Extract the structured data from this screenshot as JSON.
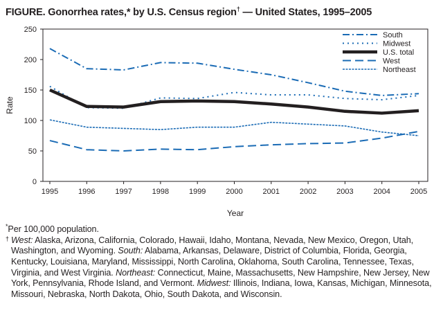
{
  "title": {
    "text": "FIGURE. Gonorrhea rates,* by U.S. Census region",
    "dagger": "†",
    "rest": " — United States, 1995–2005"
  },
  "chart_data": {
    "type": "line",
    "title": "Gonorrhea rates, by U.S. Census region — United States, 1995–2005",
    "xlabel": "Year",
    "ylabel": "Rate",
    "x": [
      1995,
      1996,
      1997,
      1998,
      1999,
      2000,
      2001,
      2002,
      2003,
      2004,
      2005
    ],
    "ylim": [
      0,
      250
    ],
    "yticks": [
      0,
      50,
      100,
      150,
      200,
      250
    ],
    "grid": false,
    "legend_placement": "top-right",
    "series": [
      {
        "name": "South",
        "style": "dashdot",
        "color": "#1a6bb5",
        "width": 2,
        "values": [
          218,
          185,
          183,
          195,
          194,
          184,
          175,
          162,
          148,
          141,
          144
        ]
      },
      {
        "name": "Midwest",
        "style": "dotted",
        "color": "#1a6bb5",
        "width": 2,
        "values": [
          156,
          121,
          120,
          137,
          136,
          146,
          142,
          142,
          136,
          134,
          141
        ]
      },
      {
        "name": "U.S. total",
        "style": "solid",
        "color": "#231f20",
        "width": 4.5,
        "values": [
          150,
          123,
          122,
          131,
          132,
          131,
          127,
          122,
          115,
          112,
          116
        ]
      },
      {
        "name": "West",
        "style": "dashed",
        "color": "#1a6bb5",
        "width": 2,
        "values": [
          67,
          52,
          50,
          53,
          52,
          57,
          60,
          62,
          63,
          71,
          82
        ]
      },
      {
        "name": "Northeast",
        "style": "shortdash",
        "color": "#1a6bb5",
        "width": 1.6,
        "values": [
          101,
          89,
          87,
          85,
          89,
          89,
          97,
          94,
          91,
          81,
          75
        ]
      }
    ]
  },
  "notes": {
    "star": "*",
    "per": "Per 100,000 population.",
    "dagger": "†",
    "west_label": "West:",
    "west": " Alaska, Arizona, California, Colorado, Hawaii, Idaho, Montana, Nevada, New Mexico, Oregon, Utah, Washington, and Wyoming. ",
    "south_label": "South:",
    "south": " Alabama, Arkansas, Delaware, District of Columbia, Florida, Georgia, Kentucky, Louisiana, Maryland, Mississippi, North Carolina, Oklahoma, South Carolina, Tennessee, Texas, Virginia, and West Virginia. ",
    "northeast_label": "Northeast:",
    "northeast": " Connecticut, Maine, Massachusetts, New Hampshire, New Jersey, New York, Pennsylvania, Rhode Island, and Vermont. ",
    "midwest_label": "Midwest:",
    "midwest": " Illinois, Indiana, Iowa, Kansas, Michigan, Minnesota, Missouri, Nebraska, North Dakota, Ohio, South Dakota, and Wisconsin."
  }
}
